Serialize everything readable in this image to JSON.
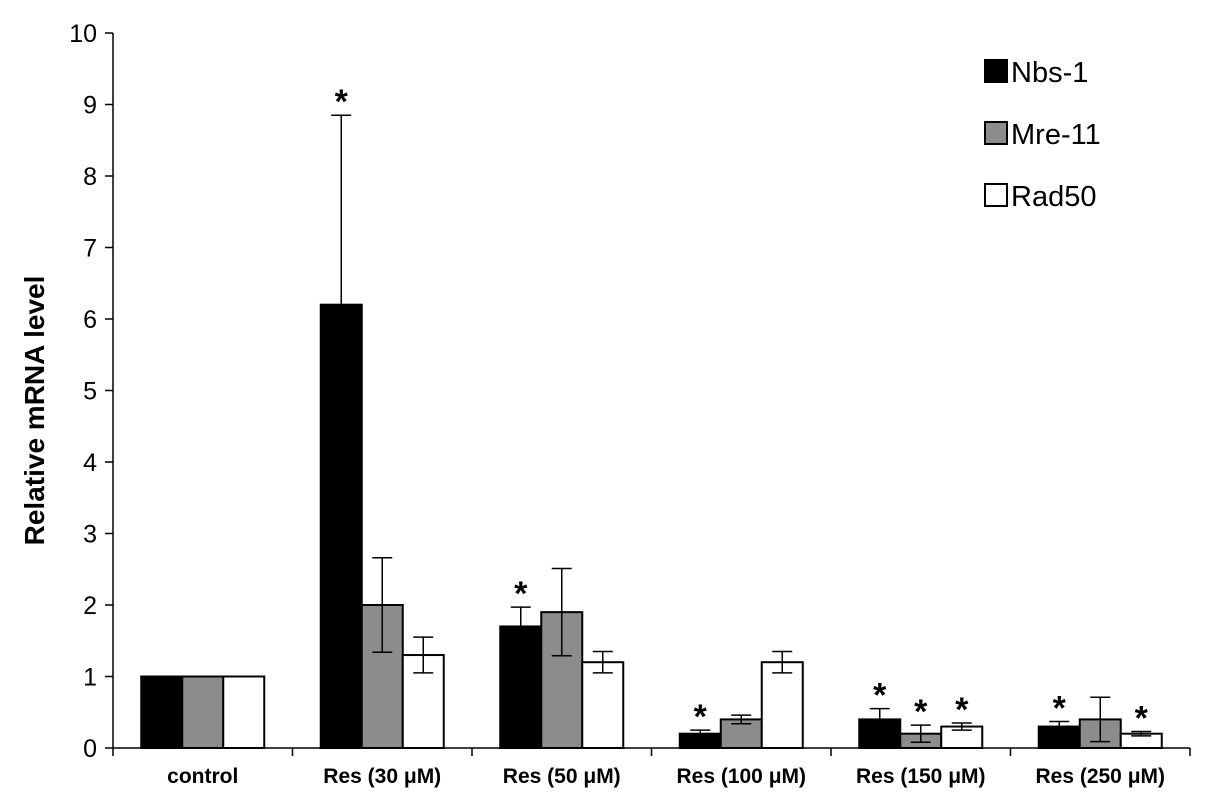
{
  "chart_data": {
    "type": "bar",
    "title": "",
    "xlabel": "",
    "ylabel": "Relative mRNA level",
    "ylim": [
      0,
      10
    ],
    "yticks": [
      0,
      1,
      2,
      3,
      4,
      5,
      6,
      7,
      8,
      9,
      10
    ],
    "grid": false,
    "legend_position": "top-right",
    "categories": [
      "control",
      "Res (30 μM)",
      "Res (50 μM)",
      "Res (100 μM)",
      "Res (150 μM)",
      "Res (250 μM)"
    ],
    "significance_marker": "*",
    "series": [
      {
        "name": "Nbs-1",
        "color": "#000000",
        "values": [
          1.0,
          6.2,
          1.7,
          0.2,
          0.4,
          0.3
        ],
        "errors": [
          0,
          2.65,
          0.27,
          0.05,
          0.15,
          0.07
        ],
        "significant": [
          false,
          true,
          true,
          true,
          true,
          true
        ]
      },
      {
        "name": "Mre-11",
        "color": "#8c8c8c",
        "values": [
          1.0,
          2.0,
          1.9,
          0.4,
          0.2,
          0.4
        ],
        "errors": [
          0,
          0.66,
          0.61,
          0.06,
          0.12,
          0.31
        ],
        "significant": [
          false,
          false,
          false,
          false,
          true,
          false
        ]
      },
      {
        "name": "Rad50",
        "color": "#ffffff",
        "values": [
          1.0,
          1.3,
          1.2,
          1.2,
          0.3,
          0.2
        ],
        "errors": [
          0,
          0.25,
          0.15,
          0.15,
          0.05,
          0.03
        ],
        "significant": [
          false,
          false,
          false,
          false,
          true,
          true
        ]
      }
    ]
  }
}
